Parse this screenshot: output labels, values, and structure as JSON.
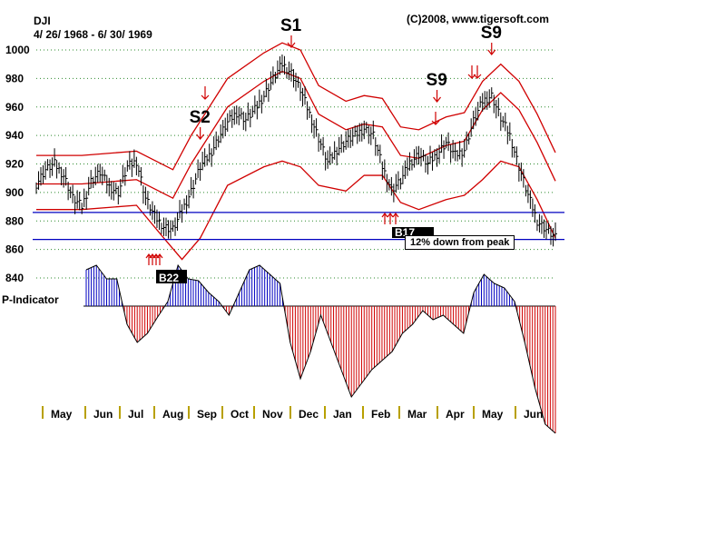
{
  "header": {
    "ticker": "DJI",
    "date_range": "4/ 26/ 1968 - 6/ 30/ 1969",
    "copyright": "(C)2008, www.tigersoft.com"
  },
  "chart_data": {
    "type": "line",
    "title": "DJI",
    "subtitle": "4/ 26/ 1968 - 6/ 30/ 1969",
    "ylim": [
      840,
      1000
    ],
    "yticks": [
      "1000",
      "980",
      "960",
      "940",
      "920",
      "900",
      "880",
      "860",
      "840"
    ],
    "grid": true,
    "months": [
      "May",
      "Jun",
      "Jul",
      "Aug",
      "Sep",
      "Oct",
      "Nov",
      "Dec",
      "Jan",
      "Feb",
      "Mar",
      "Apr",
      "May",
      "Jun"
    ],
    "price_series": {
      "name": "DJI",
      "points": [
        [
          0,
          906
        ],
        [
          1,
          916
        ],
        [
          2,
          920
        ],
        [
          3,
          912
        ],
        [
          4,
          896
        ],
        [
          5,
          890
        ],
        [
          6,
          908
        ],
        [
          7,
          914
        ],
        [
          8,
          904
        ],
        [
          9,
          900
        ],
        [
          10,
          918
        ],
        [
          11,
          922
        ],
        [
          12,
          896
        ],
        [
          13,
          883
        ],
        [
          14,
          876
        ],
        [
          15,
          874
        ],
        [
          16,
          887
        ],
        [
          17,
          901
        ],
        [
          18,
          918
        ],
        [
          19,
          926
        ],
        [
          20,
          938
        ],
        [
          21,
          949
        ],
        [
          22,
          956
        ],
        [
          23,
          951
        ],
        [
          24,
          958
        ],
        [
          25,
          968
        ],
        [
          26,
          980
        ],
        [
          27,
          990
        ],
        [
          28,
          984
        ],
        [
          29,
          972
        ],
        [
          30,
          955
        ],
        [
          31,
          938
        ],
        [
          32,
          921
        ],
        [
          33,
          930
        ],
        [
          34,
          936
        ],
        [
          35,
          940
        ],
        [
          36,
          945
        ],
        [
          37,
          940
        ],
        [
          38,
          918
        ],
        [
          39,
          902
        ],
        [
          40,
          908
        ],
        [
          41,
          921
        ],
        [
          42,
          927
        ],
        [
          43,
          920
        ],
        [
          44,
          927
        ],
        [
          45,
          935
        ],
        [
          46,
          926
        ],
        [
          47,
          930
        ],
        [
          48,
          950
        ],
        [
          49,
          964
        ],
        [
          50,
          968
        ],
        [
          51,
          952
        ],
        [
          52,
          940
        ],
        [
          53,
          918
        ],
        [
          54,
          898
        ],
        [
          55,
          880
        ],
        [
          56,
          874
        ],
        [
          57,
          868
        ]
      ]
    },
    "upper_band": [
      [
        0,
        926
      ],
      [
        5,
        926
      ],
      [
        11,
        929
      ],
      [
        15,
        916
      ],
      [
        17,
        940
      ],
      [
        21,
        980
      ],
      [
        25,
        998
      ],
      [
        27,
        1005
      ],
      [
        29,
        1000
      ],
      [
        31,
        975
      ],
      [
        34,
        964
      ],
      [
        36,
        968
      ],
      [
        38,
        966
      ],
      [
        40,
        946
      ],
      [
        42,
        944
      ],
      [
        45,
        953
      ],
      [
        47,
        956
      ],
      [
        49,
        978
      ],
      [
        51,
        990
      ],
      [
        53,
        978
      ],
      [
        55,
        955
      ],
      [
        57,
        928
      ]
    ],
    "middle_band": [
      [
        0,
        906
      ],
      [
        5,
        906
      ],
      [
        11,
        909
      ],
      [
        15,
        896
      ],
      [
        17,
        920
      ],
      [
        21,
        960
      ],
      [
        25,
        978
      ],
      [
        27,
        985
      ],
      [
        29,
        980
      ],
      [
        31,
        955
      ],
      [
        34,
        944
      ],
      [
        36,
        948
      ],
      [
        38,
        946
      ],
      [
        40,
        926
      ],
      [
        42,
        924
      ],
      [
        45,
        933
      ],
      [
        47,
        936
      ],
      [
        49,
        958
      ],
      [
        51,
        970
      ],
      [
        53,
        958
      ],
      [
        55,
        935
      ],
      [
        57,
        908
      ]
    ],
    "lower_band": [
      [
        0,
        888
      ],
      [
        5,
        888
      ],
      [
        11,
        891
      ],
      [
        14,
        868
      ],
      [
        16,
        853
      ],
      [
        18,
        868
      ],
      [
        21,
        905
      ],
      [
        25,
        918
      ],
      [
        27,
        922
      ],
      [
        29,
        918
      ],
      [
        31,
        905
      ],
      [
        34,
        901
      ],
      [
        36,
        912
      ],
      [
        38,
        912
      ],
      [
        40,
        893
      ],
      [
        42,
        888
      ],
      [
        45,
        895
      ],
      [
        47,
        898
      ],
      [
        49,
        909
      ],
      [
        51,
        922
      ],
      [
        53,
        918
      ],
      [
        55,
        895
      ],
      [
        57,
        868
      ]
    ],
    "support_lines": [
      886,
      867
    ],
    "p_indicator": {
      "label": "P-Indicator",
      "values": [
        40,
        45,
        30,
        30,
        -20,
        -40,
        -30,
        -12,
        5,
        45,
        30,
        28,
        15,
        5,
        -10,
        15,
        40,
        45,
        35,
        25,
        -40,
        -80,
        -50,
        -10,
        -40,
        -70,
        -100,
        -85,
        -70,
        -60,
        -50,
        -30,
        -20,
        -5,
        -15,
        -10,
        -20,
        -30,
        15,
        35,
        25,
        20,
        5,
        -40,
        -90,
        -130,
        -140
      ]
    },
    "signals": [
      {
        "label": "S1",
        "x": 28,
        "type": "sell"
      },
      {
        "label": "S2",
        "x": 18,
        "type": "sell"
      },
      {
        "label": "S9",
        "x": 44,
        "type": "sell"
      },
      {
        "label": "S9",
        "x": 50,
        "type": "sell"
      }
    ],
    "buy_labels": [
      "B22",
      "B17"
    ],
    "annotation": "12% down from peak"
  }
}
